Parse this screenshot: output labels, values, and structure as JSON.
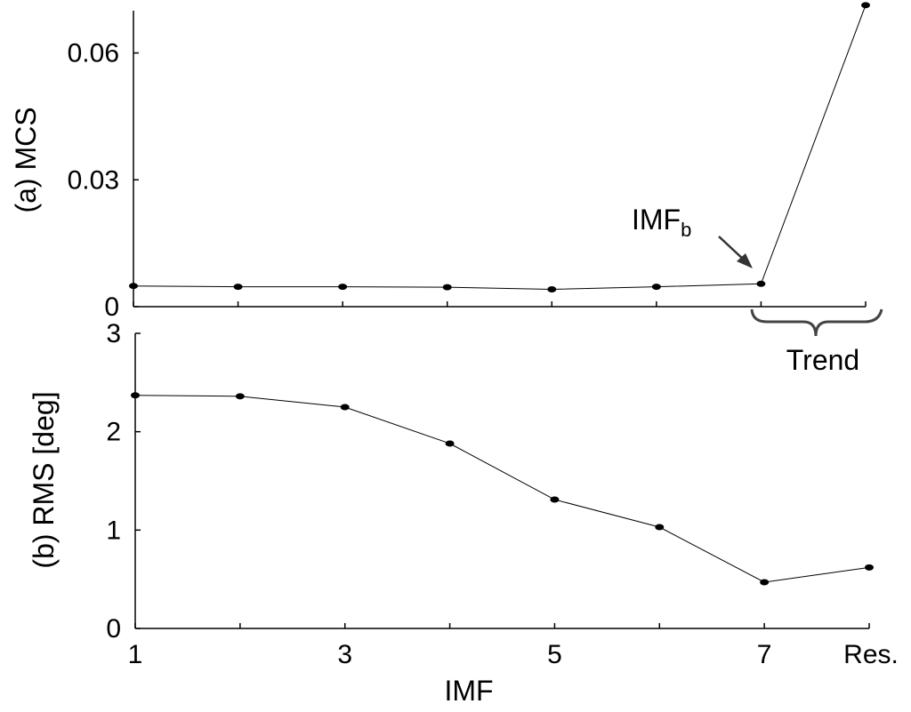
{
  "chart_data": [
    {
      "type": "line",
      "panel": "a",
      "ylabel": "(a) MCS",
      "xlabel": "",
      "categories": [
        "1",
        "2",
        "3",
        "4",
        "5",
        "6",
        "7",
        "Res."
      ],
      "x_tick_labels": [
        "",
        "",
        "",
        "",
        "",
        "",
        "",
        ""
      ],
      "y_ticks": [
        0,
        0.03,
        0.06
      ],
      "y_tick_labels": [
        "0",
        "0.03",
        "0.06"
      ],
      "ylim": [
        0,
        0.07
      ],
      "grid": false,
      "series": [
        {
          "values": [
            0.0049,
            0.0047,
            0.0047,
            0.0046,
            0.0041,
            0.0047,
            0.0054,
            0.0713
          ]
        }
      ],
      "annotations": {
        "imf_b_label": "IMF",
        "imf_b_sub": "b",
        "trend_label": "Trend"
      }
    },
    {
      "type": "line",
      "panel": "b",
      "ylabel": "(b) RMS [deg]",
      "xlabel": "IMF",
      "categories": [
        "1",
        "2",
        "3",
        "4",
        "5",
        "6",
        "7",
        "Res."
      ],
      "x_tick_labels": [
        "1",
        "",
        "3",
        "",
        "5",
        "",
        "7",
        "Res."
      ],
      "y_ticks": [
        0,
        1,
        2,
        3
      ],
      "y_tick_labels": [
        "0",
        "1",
        "2",
        "3"
      ],
      "ylim": [
        0,
        3
      ],
      "grid": false,
      "series": [
        {
          "values": [
            2.37,
            2.36,
            2.25,
            1.88,
            1.31,
            1.03,
            0.47,
            0.62
          ]
        }
      ]
    }
  ]
}
